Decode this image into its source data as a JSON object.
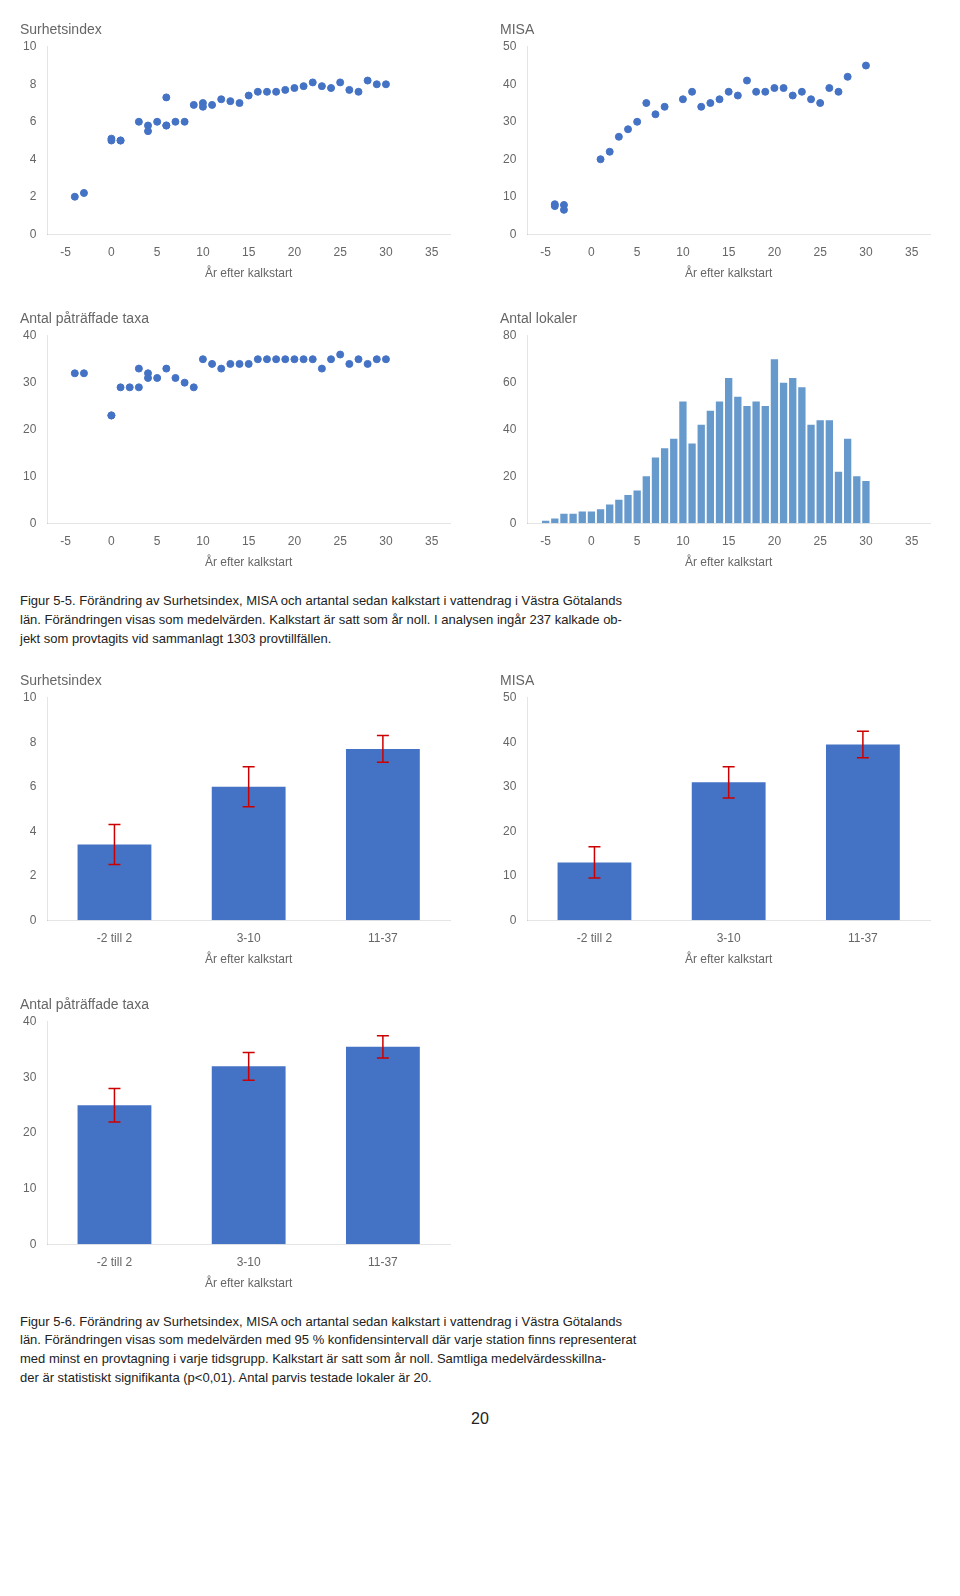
{
  "chart_data": [
    {
      "type": "scatter",
      "title": "Surhetsindex",
      "x_label": "År efter kalkstart",
      "x": [
        -4,
        -3,
        0,
        0,
        1,
        1,
        3,
        4,
        4,
        5,
        6,
        6,
        6,
        7,
        8,
        9,
        10,
        10,
        11,
        12,
        13,
        14,
        15,
        16,
        17,
        18,
        19,
        20,
        21,
        22,
        23,
        24,
        25,
        26,
        27,
        28,
        29,
        30
      ],
      "values": [
        2.0,
        2.2,
        5.0,
        5.1,
        5.0,
        5.0,
        6.0,
        5.5,
        5.8,
        6.0,
        5.8,
        7.3,
        5.8,
        6.0,
        6.0,
        6.9,
        7.0,
        6.8,
        6.9,
        7.2,
        7.1,
        7.0,
        7.4,
        7.6,
        7.6,
        7.6,
        7.7,
        7.8,
        7.9,
        8.1,
        7.9,
        7.8,
        8.1,
        7.7,
        7.6,
        8.2,
        8.0,
        8.0
      ],
      "color": "#4472C4",
      "xlim": [
        -7,
        37
      ],
      "xticks": [
        -5,
        0,
        5,
        10,
        15,
        20,
        25,
        30,
        35
      ],
      "ylim": [
        0,
        10
      ],
      "yticks": [
        0,
        2,
        4,
        6,
        8,
        10
      ],
      "grid": false
    },
    {
      "type": "scatter",
      "title": "MISA",
      "x_label": "År efter kalkstart",
      "x": [
        -4,
        -4,
        -3,
        -3,
        1,
        2,
        3,
        4,
        5,
        6,
        7,
        8,
        10,
        11,
        12,
        13,
        14,
        15,
        16,
        17,
        18,
        19,
        20,
        21,
        22,
        23,
        24,
        25,
        26,
        27,
        28,
        30
      ],
      "values": [
        8.0,
        7.5,
        7.8,
        6.5,
        20.0,
        22.0,
        26.0,
        28.0,
        30.0,
        35.0,
        32.0,
        34.0,
        36.0,
        38.0,
        34.0,
        35.0,
        36.0,
        38.0,
        37.0,
        41.0,
        38.0,
        38.0,
        39.0,
        39.0,
        37.0,
        38.0,
        36.0,
        35.0,
        39.0,
        38.0,
        42.0,
        45.0
      ],
      "color": "#4472C4",
      "xlim": [
        -7,
        37
      ],
      "xticks": [
        -5,
        0,
        5,
        10,
        15,
        20,
        25,
        30,
        35
      ],
      "ylim": [
        0,
        50
      ],
      "yticks": [
        0,
        10,
        20,
        30,
        40,
        50
      ],
      "grid": false
    },
    {
      "type": "scatter",
      "title": "Antal påträffade taxa",
      "x_label": "År efter kalkstart",
      "x": [
        -4,
        -3,
        0,
        0,
        1,
        2,
        3,
        3,
        4,
        4,
        5,
        6,
        7,
        8,
        9,
        10,
        11,
        12,
        13,
        14,
        15,
        16,
        17,
        18,
        19,
        20,
        21,
        22,
        23,
        24,
        25,
        26,
        27,
        28,
        29,
        30
      ],
      "values": [
        32,
        32,
        23,
        23,
        29,
        29,
        29,
        33,
        31,
        32,
        31,
        33,
        31,
        30,
        29,
        35,
        34,
        33,
        34,
        34,
        34,
        35,
        35,
        35,
        35,
        35,
        35,
        35,
        33,
        35,
        36,
        34,
        35,
        34,
        35,
        35
      ],
      "color": "#4472C4",
      "xlim": [
        -7,
        37
      ],
      "xticks": [
        -5,
        0,
        5,
        10,
        15,
        20,
        25,
        30,
        35
      ],
      "ylim": [
        0,
        40
      ],
      "yticks": [
        0,
        10,
        20,
        30,
        40
      ],
      "grid": false
    },
    {
      "type": "bar",
      "title": "Antal lokaler",
      "x_label": "År efter kalkstart",
      "x": [
        -5,
        -4,
        -3,
        -2,
        -1,
        0,
        1,
        2,
        3,
        4,
        5,
        6,
        7,
        8,
        9,
        10,
        11,
        12,
        13,
        14,
        15,
        16,
        17,
        18,
        19,
        20,
        21,
        22,
        23,
        24,
        25,
        26,
        27,
        28,
        29,
        30
      ],
      "values": [
        1,
        2,
        4,
        4,
        5,
        5,
        6,
        8,
        10,
        12,
        14,
        20,
        28,
        32,
        36,
        52,
        34,
        42,
        48,
        52,
        62,
        54,
        50,
        52,
        50,
        70,
        60,
        62,
        58,
        42,
        44,
        44,
        22,
        36,
        20,
        18
      ],
      "color": "#6699CC",
      "xlim": [
        -7,
        37
      ],
      "xticks": [
        -5,
        0,
        5,
        10,
        15,
        20,
        25,
        30,
        35
      ],
      "ylim": [
        0,
        80
      ],
      "yticks": [
        0,
        20,
        40,
        60,
        80
      ],
      "grid": false
    },
    {
      "type": "bar",
      "title": "Surhetsindex",
      "x_label": "År efter kalkstart",
      "categories": [
        "-2 till 2",
        "3-10",
        "11-37"
      ],
      "values": [
        3.4,
        6.0,
        7.7
      ],
      "errors": [
        0.9,
        0.9,
        0.6
      ],
      "color": "#4472C4",
      "error_color": "#CC0000",
      "ylim": [
        0,
        10
      ],
      "yticks": [
        0,
        2,
        4,
        6,
        8,
        10
      ],
      "grid": false
    },
    {
      "type": "bar",
      "title": "MISA",
      "x_label": "År efter kalkstart",
      "categories": [
        "-2 till 2",
        "3-10",
        "11-37"
      ],
      "values": [
        13.0,
        31.0,
        39.5
      ],
      "errors": [
        3.5,
        3.5,
        3.0
      ],
      "color": "#4472C4",
      "error_color": "#CC0000",
      "ylim": [
        0,
        50
      ],
      "yticks": [
        0,
        10,
        20,
        30,
        40,
        50
      ],
      "grid": false
    },
    {
      "type": "bar",
      "title": "Antal påträffade taxa",
      "x_label": "År efter kalkstart",
      "categories": [
        "-2 till 2",
        "3-10",
        "11-37"
      ],
      "values": [
        25.0,
        32.0,
        35.5
      ],
      "errors": [
        3.0,
        2.5,
        2.0
      ],
      "color": "#4472C4",
      "error_color": "#CC0000",
      "ylim": [
        0,
        40
      ],
      "yticks": [
        0,
        10,
        20,
        30,
        40
      ],
      "grid": false
    }
  ],
  "annotations": [
    "Figur 5-5. Förändring av Surhetsindex, MISA och artantal sedan kalkstart i vattendrag i Västra Götalands\nlän. Förändringen visas som medelvärden. Kalkstart är satt som år noll. I analysen ingår 237 kalkade ob-\njekt som provtagits vid sammanlagt 1303 provtillfällen.",
    "Figur 5-6. Förändring av Surhetsindex, MISA och artantal sedan kalkstart i vattendrag i Västra Götalands\nlän. Förändringen visas som medelvärden med 95 % konfidensintervall där varje station finns representerat\nmed minst en provtagning i varje tidsgrupp. Kalkstart är satt som år noll. Samtliga medelvärdesskillna-\nder är statistiskt signifikanta (p<0,01). Antal parvis testade lokaler är 20.",
    "20"
  ]
}
